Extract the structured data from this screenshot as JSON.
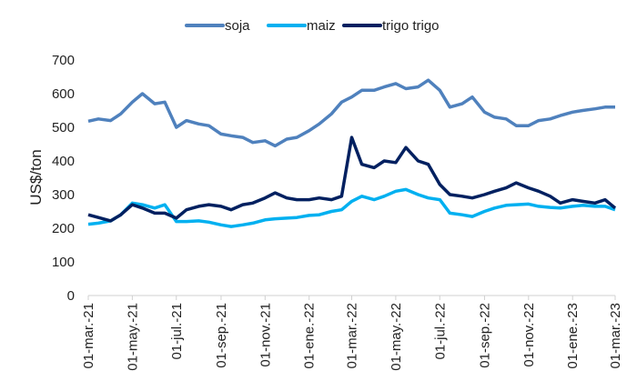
{
  "chart_data": {
    "type": "line",
    "title": "",
    "xlabel": "",
    "ylabel": "US$/ton",
    "ylim": [
      0,
      700
    ],
    "yticks": [
      "0",
      "100",
      "200",
      "300",
      "400",
      "500",
      "600",
      "700"
    ],
    "xlim": [
      "2021-03-01",
      "2023-03-01"
    ],
    "xtick_dates": [
      "2021-03-01",
      "2021-05-01",
      "2021-07-01",
      "2021-09-01",
      "2021-11-01",
      "2022-01-01",
      "2022-03-01",
      "2022-05-01",
      "2022-07-01",
      "2022-09-01",
      "2022-11-01",
      "2023-01-01",
      "2023-03-01"
    ],
    "xtick_labels": [
      "01-mar.-21",
      "01-may.-21",
      "01-jul.-21",
      "01-sep.-21",
      "01-nov.-21",
      "01-ene.-22",
      "01-mar.-22",
      "01-may.-22",
      "01-jul.-22",
      "01-sep.-22",
      "01-nov.-22",
      "01-ene.-23",
      "01-mar.-23"
    ],
    "grid": false,
    "legend_position": "top",
    "x": [
      "2021-03-01",
      "2021-03-15",
      "2021-04-01",
      "2021-04-15",
      "2021-05-01",
      "2021-05-15",
      "2021-06-01",
      "2021-06-15",
      "2021-07-01",
      "2021-07-15",
      "2021-08-01",
      "2021-08-15",
      "2021-09-01",
      "2021-09-15",
      "2021-10-01",
      "2021-10-15",
      "2021-11-01",
      "2021-11-15",
      "2021-12-01",
      "2021-12-15",
      "2022-01-01",
      "2022-01-15",
      "2022-02-01",
      "2022-02-15",
      "2022-03-01",
      "2022-03-15",
      "2022-04-01",
      "2022-04-15",
      "2022-05-01",
      "2022-05-15",
      "2022-06-01",
      "2022-06-15",
      "2022-07-01",
      "2022-07-15",
      "2022-08-01",
      "2022-08-15",
      "2022-09-01",
      "2022-09-15",
      "2022-10-01",
      "2022-10-15",
      "2022-11-01",
      "2022-11-15",
      "2022-12-01",
      "2022-12-15",
      "2023-01-01",
      "2023-01-15",
      "2023-02-01",
      "2023-02-15",
      "2023-03-01"
    ],
    "series": [
      {
        "name": "soja",
        "color": "#4F81BD",
        "values": [
          518,
          525,
          520,
          540,
          575,
          600,
          570,
          575,
          500,
          520,
          510,
          505,
          480,
          475,
          470,
          455,
          460,
          445,
          465,
          470,
          490,
          510,
          540,
          575,
          590,
          610,
          610,
          620,
          630,
          615,
          620,
          640,
          610,
          560,
          570,
          590,
          545,
          530,
          525,
          505,
          505,
          520,
          525,
          535,
          545,
          550,
          555,
          560,
          560
        ]
      },
      {
        "name": "maiz",
        "color": "#00B0F0",
        "values": [
          212,
          215,
          222,
          240,
          275,
          270,
          260,
          270,
          220,
          220,
          222,
          218,
          210,
          205,
          210,
          215,
          225,
          228,
          230,
          232,
          238,
          240,
          250,
          255,
          280,
          295,
          285,
          295,
          310,
          315,
          300,
          290,
          285,
          245,
          240,
          235,
          250,
          260,
          268,
          270,
          272,
          265,
          262,
          260,
          265,
          268,
          265,
          265,
          255
        ]
      },
      {
        "name": "trigo trigo",
        "color": "#002060",
        "values": [
          240,
          232,
          222,
          240,
          270,
          260,
          245,
          245,
          230,
          255,
          265,
          270,
          265,
          255,
          270,
          275,
          290,
          305,
          290,
          285,
          285,
          290,
          285,
          295,
          470,
          390,
          380,
          400,
          395,
          440,
          400,
          390,
          330,
          300,
          295,
          290,
          300,
          310,
          320,
          335,
          320,
          310,
          295,
          275,
          285,
          280,
          275,
          285,
          260
        ]
      }
    ]
  }
}
